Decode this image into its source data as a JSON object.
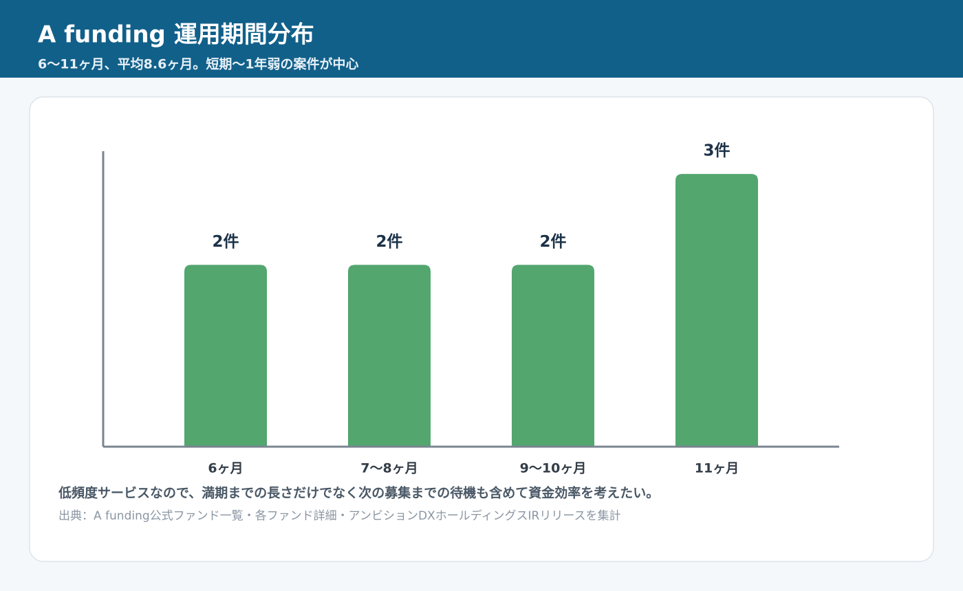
{
  "chart_data": {
    "type": "bar",
    "title": "A funding 運用期間分布",
    "subtitle": "6〜11ヶ月、平均8.6ヶ月。短期〜1年弱の案件が中心",
    "categories": [
      "6ヶ月",
      "7〜8ヶ月",
      "9〜10ヶ月",
      "11ヶ月"
    ],
    "values": [
      2,
      2,
      2,
      3
    ],
    "value_labels": [
      "2件",
      "2件",
      "2件",
      "3件"
    ],
    "color": "#52a66e",
    "ylim": [
      0,
      3.25
    ],
    "note": "低頻度サービスなので、満期までの長さだけでなく次の募集までの待機も含めて資金効率を考えたい。",
    "source": "出典：A funding公式ファンド一覧・各ファンド詳細・アンビションDXホールディングスIRリリースを集計"
  }
}
